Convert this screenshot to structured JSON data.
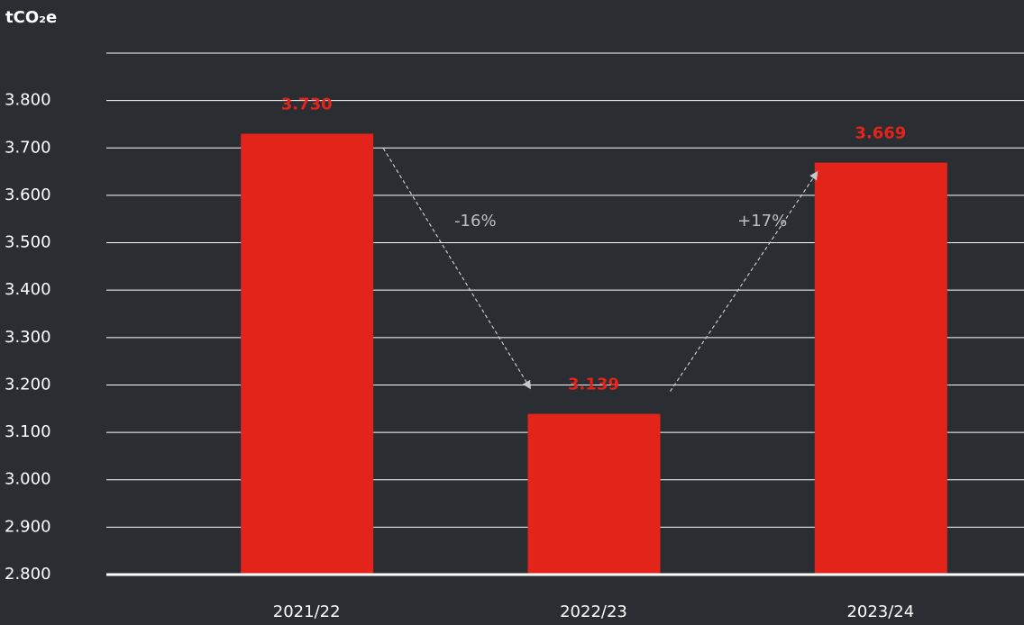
{
  "chart_data": {
    "type": "bar",
    "y_label": "tCO₂e",
    "categories": [
      "2021/22",
      "2022/23",
      "2023/24"
    ],
    "values": [
      3730,
      3139,
      3669
    ],
    "value_labels": [
      "3.730",
      "3.139",
      "3.669"
    ],
    "color": "#e3241b",
    "label_color": "#e3241b",
    "ylim": [
      2800,
      3900
    ],
    "yticks": [
      {
        "value": 2800,
        "label": "2.800"
      },
      {
        "value": 2900,
        "label": "2.900"
      },
      {
        "value": 3000,
        "label": "3.000"
      },
      {
        "value": 3100,
        "label": "3.100"
      },
      {
        "value": 3200,
        "label": "3.200"
      },
      {
        "value": 3300,
        "label": "3.300"
      },
      {
        "value": 3400,
        "label": "3.400"
      },
      {
        "value": 3500,
        "label": "3.500"
      },
      {
        "value": 3600,
        "label": "3.600"
      },
      {
        "value": 3700,
        "label": "3.700"
      },
      {
        "value": 3800,
        "label": "3.800"
      }
    ],
    "grid": true,
    "annotations": [
      "-16%",
      "+17%"
    ]
  }
}
